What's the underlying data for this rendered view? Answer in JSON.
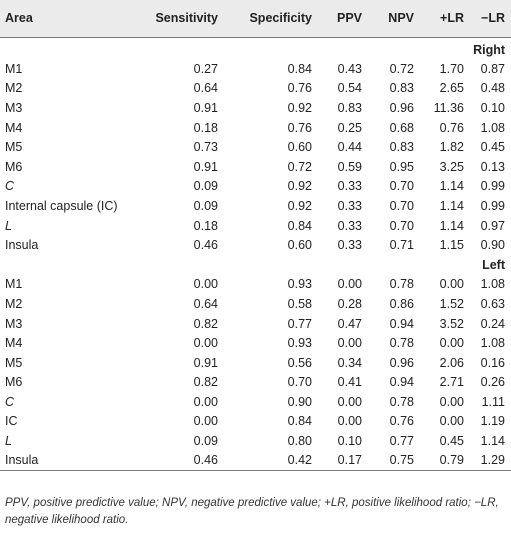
{
  "headers": [
    "Area",
    "Sensitivity",
    "Specificity",
    "PPV",
    "NPV",
    "+LR",
    "−LR"
  ],
  "sections": [
    {
      "title": "Right",
      "rows": [
        {
          "area": "M1",
          "italic": false,
          "values": [
            "0.27",
            "0.84",
            "0.43",
            "0.72",
            "1.70",
            "0.87"
          ]
        },
        {
          "area": "M2",
          "italic": false,
          "values": [
            "0.64",
            "0.76",
            "0.54",
            "0.83",
            "2.65",
            "0.48"
          ]
        },
        {
          "area": "M3",
          "italic": false,
          "values": [
            "0.91",
            "0.92",
            "0.83",
            "0.96",
            "11.36",
            "0.10"
          ]
        },
        {
          "area": "M4",
          "italic": false,
          "values": [
            "0.18",
            "0.76",
            "0.25",
            "0.68",
            "0.76",
            "1.08"
          ]
        },
        {
          "area": "M5",
          "italic": false,
          "values": [
            "0.73",
            "0.60",
            "0.44",
            "0.83",
            "1.82",
            "0.45"
          ]
        },
        {
          "area": "M6",
          "italic": false,
          "values": [
            "0.91",
            "0.72",
            "0.59",
            "0.95",
            "3.25",
            "0.13"
          ]
        },
        {
          "area": "C",
          "italic": true,
          "values": [
            "0.09",
            "0.92",
            "0.33",
            "0.70",
            "1.14",
            "0.99"
          ]
        },
        {
          "area": "Internal capsule (IC)",
          "italic": false,
          "values": [
            "0.09",
            "0.92",
            "0.33",
            "0.70",
            "1.14",
            "0.99"
          ]
        },
        {
          "area": "L",
          "italic": true,
          "values": [
            "0.18",
            "0.84",
            "0.33",
            "0.70",
            "1.14",
            "0.97"
          ]
        },
        {
          "area": "Insula",
          "italic": false,
          "values": [
            "0.46",
            "0.60",
            "0.33",
            "0.71",
            "1.15",
            "0.90"
          ]
        }
      ]
    },
    {
      "title": "Left",
      "rows": [
        {
          "area": "M1",
          "italic": false,
          "values": [
            "0.00",
            "0.93",
            "0.00",
            "0.78",
            "0.00",
            "1.08"
          ]
        },
        {
          "area": "M2",
          "italic": false,
          "values": [
            "0.64",
            "0.58",
            "0.28",
            "0.86",
            "1.52",
            "0.63"
          ]
        },
        {
          "area": "M3",
          "italic": false,
          "values": [
            "0.82",
            "0.77",
            "0.47",
            "0.94",
            "3.52",
            "0.24"
          ]
        },
        {
          "area": "M4",
          "italic": false,
          "values": [
            "0.00",
            "0.93",
            "0.00",
            "0.78",
            "0.00",
            "1.08"
          ]
        },
        {
          "area": "M5",
          "italic": false,
          "values": [
            "0.91",
            "0.56",
            "0.34",
            "0.96",
            "2.06",
            "0.16"
          ]
        },
        {
          "area": "M6",
          "italic": false,
          "values": [
            "0.82",
            "0.70",
            "0.41",
            "0.94",
            "2.71",
            "0.26"
          ]
        },
        {
          "area": "C",
          "italic": true,
          "values": [
            "0.00",
            "0.90",
            "0.00",
            "0.78",
            "0.00",
            "1.11"
          ]
        },
        {
          "area": "IC",
          "italic": false,
          "values": [
            "0.00",
            "0.84",
            "0.00",
            "0.76",
            "0.00",
            "1.19"
          ]
        },
        {
          "area": "L",
          "italic": true,
          "values": [
            "0.09",
            "0.80",
            "0.10",
            "0.77",
            "0.45",
            "1.14"
          ]
        },
        {
          "area": "Insula",
          "italic": false,
          "values": [
            "0.46",
            "0.42",
            "0.17",
            "0.75",
            "0.79",
            "1.29"
          ]
        }
      ]
    }
  ],
  "footnote": "PPV, positive predictive value; NPV, negative predictive value; +LR, positive likelihood ratio; −LR, negative likelihood ratio."
}
